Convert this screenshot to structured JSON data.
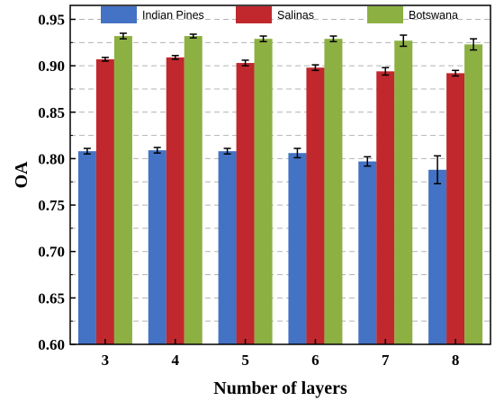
{
  "chart_data": {
    "type": "bar",
    "title": "",
    "xlabel": "Number of layers",
    "ylabel": "OA",
    "categories": [
      "3",
      "4",
      "5",
      "6",
      "7",
      "8"
    ],
    "yticks": [
      "0.60",
      "0.65",
      "0.70",
      "0.75",
      "0.80",
      "0.85",
      "0.90",
      "0.95"
    ],
    "ylim": [
      0.6,
      0.965
    ],
    "grid": "dashed horizontal",
    "legend_position": "top",
    "series": [
      {
        "name": "Indian Pines",
        "color": "#4472C4",
        "values": [
          0.808,
          0.809,
          0.808,
          0.806,
          0.797,
          0.788
        ],
        "errors": [
          0.003,
          0.003,
          0.003,
          0.005,
          0.005,
          0.015
        ]
      },
      {
        "name": "Salinas",
        "color": "#C0282D",
        "values": [
          0.907,
          0.909,
          0.903,
          0.898,
          0.894,
          0.892
        ],
        "errors": [
          0.002,
          0.002,
          0.003,
          0.003,
          0.004,
          0.003
        ]
      },
      {
        "name": "Botswana",
        "color": "#8DB043",
        "values": [
          0.932,
          0.932,
          0.929,
          0.929,
          0.927,
          0.923
        ],
        "errors": [
          0.003,
          0.002,
          0.003,
          0.003,
          0.006,
          0.006
        ]
      }
    ]
  }
}
